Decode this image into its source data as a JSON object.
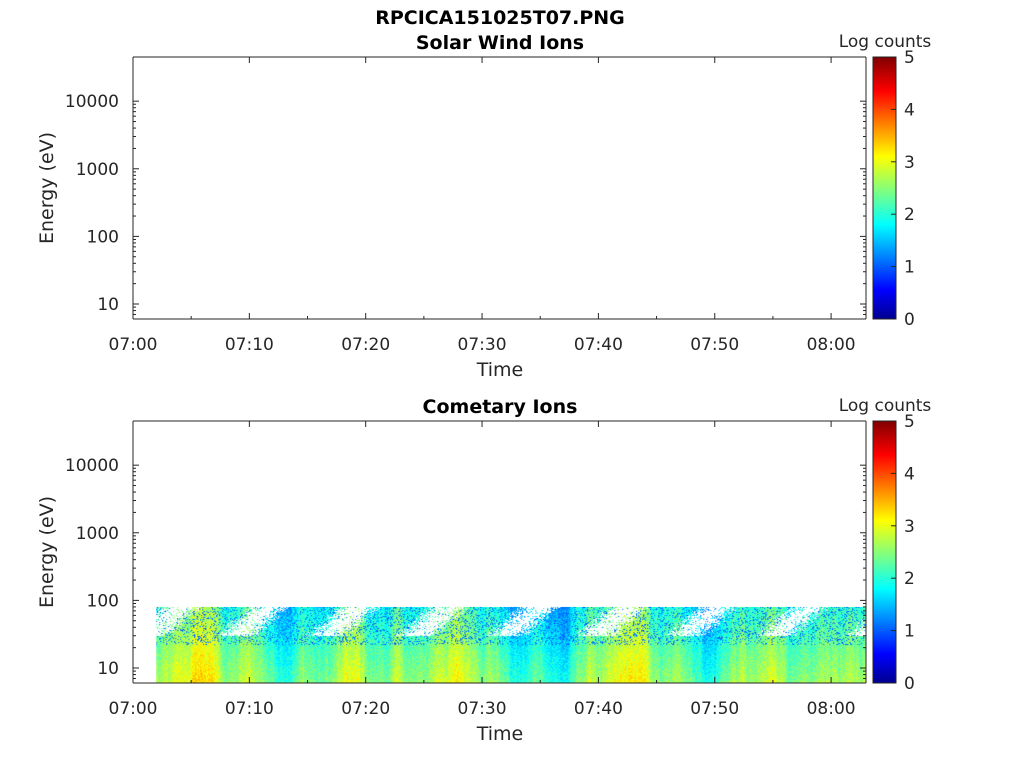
{
  "figure_title": "RPCICA151025T07.PNG",
  "colormap": [
    "#00008f",
    "#0000ff",
    "#00ffff",
    "#ffff00",
    "#ff0000",
    "#800000"
  ],
  "chart_data": [
    {
      "type": "heatmap",
      "title": "Solar Wind Ions",
      "xlabel": "Time",
      "ylabel": "Energy (eV)",
      "x_ticks": [
        "07:00",
        "07:10",
        "07:20",
        "07:30",
        "07:40",
        "07:50",
        "08:00"
      ],
      "x_range": [
        "07:00",
        "08:03"
      ],
      "y_ticks": [
        "10",
        "100",
        "1000",
        "10000"
      ],
      "y_scale": "log",
      "y_range": [
        6,
        45000
      ],
      "colorbar": {
        "label": "Log counts",
        "ticks": [
          "0",
          "1",
          "2",
          "3",
          "4",
          "5"
        ],
        "range": [
          0,
          5
        ]
      },
      "data_extent": null
    },
    {
      "type": "heatmap",
      "title": "Cometary Ions",
      "xlabel": "Time",
      "ylabel": "Energy (eV)",
      "x_ticks": [
        "07:00",
        "07:10",
        "07:20",
        "07:30",
        "07:40",
        "07:50",
        "08:00"
      ],
      "x_range": [
        "07:00",
        "08:03"
      ],
      "y_ticks": [
        "10",
        "100",
        "1000",
        "10000"
      ],
      "y_scale": "log",
      "y_range": [
        6,
        45000
      ],
      "colorbar": {
        "label": "Log counts",
        "ticks": [
          "0",
          "1",
          "2",
          "3",
          "4",
          "5"
        ],
        "range": [
          0,
          5
        ]
      },
      "data_extent": {
        "time_start": "07:02",
        "time_end": "08:03",
        "energy_min": 6,
        "energy_max": 80,
        "typical_log_counts": [
          1.5,
          2.8
        ]
      }
    }
  ]
}
